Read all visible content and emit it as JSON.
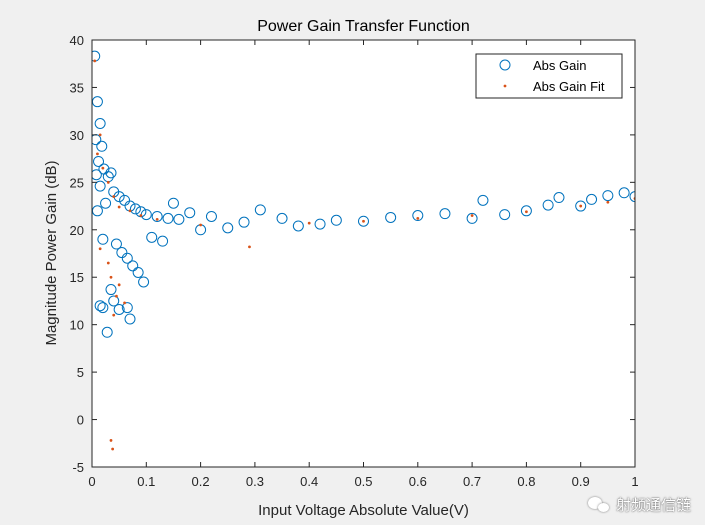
{
  "chart_data": {
    "type": "scatter",
    "title": "Power Gain Transfer Function",
    "xlabel": "Input Voltage Absolute Value(V)",
    "ylabel": "Magnitude Power Gain (dB)",
    "xlim": [
      0,
      1
    ],
    "ylim": [
      -5,
      40
    ],
    "xticks": [
      "0",
      "0.1",
      "0.2",
      "0.3",
      "0.4",
      "0.5",
      "0.6",
      "0.7",
      "0.8",
      "0.9",
      "1"
    ],
    "yticks": [
      "-5",
      "0",
      "5",
      "10",
      "15",
      "20",
      "25",
      "30",
      "35",
      "40"
    ],
    "grid": false,
    "legend": {
      "position": "top-right"
    },
    "series": [
      {
        "name": "Abs Gain",
        "marker": "open-circle",
        "color": "#0072bd",
        "points": [
          [
            0.005,
            38.3
          ],
          [
            0.01,
            33.5
          ],
          [
            0.015,
            31.2
          ],
          [
            0.007,
            29.5
          ],
          [
            0.018,
            28.8
          ],
          [
            0.012,
            27.2
          ],
          [
            0.022,
            26.4
          ],
          [
            0.008,
            25.8
          ],
          [
            0.03,
            25.6
          ],
          [
            0.035,
            26.0
          ],
          [
            0.015,
            24.6
          ],
          [
            0.04,
            24.0
          ],
          [
            0.05,
            23.5
          ],
          [
            0.06,
            23.1
          ],
          [
            0.025,
            22.8
          ],
          [
            0.07,
            22.5
          ],
          [
            0.01,
            22.0
          ],
          [
            0.08,
            22.2
          ],
          [
            0.09,
            21.9
          ],
          [
            0.1,
            21.6
          ],
          [
            0.12,
            21.4
          ],
          [
            0.14,
            21.2
          ],
          [
            0.16,
            21.1
          ],
          [
            0.02,
            19.0
          ],
          [
            0.045,
            18.5
          ],
          [
            0.055,
            17.6
          ],
          [
            0.065,
            17.0
          ],
          [
            0.075,
            16.2
          ],
          [
            0.085,
            15.5
          ],
          [
            0.095,
            14.5
          ],
          [
            0.035,
            13.7
          ],
          [
            0.04,
            12.5
          ],
          [
            0.015,
            12.0
          ],
          [
            0.02,
            11.8
          ],
          [
            0.05,
            11.6
          ],
          [
            0.065,
            11.8
          ],
          [
            0.07,
            10.6
          ],
          [
            0.028,
            9.2
          ],
          [
            0.11,
            19.2
          ],
          [
            0.13,
            18.8
          ],
          [
            0.15,
            22.8
          ],
          [
            0.18,
            21.8
          ],
          [
            0.2,
            20.0
          ],
          [
            0.22,
            21.4
          ],
          [
            0.25,
            20.2
          ],
          [
            0.28,
            20.8
          ],
          [
            0.31,
            22.1
          ],
          [
            0.35,
            21.2
          ],
          [
            0.38,
            20.4
          ],
          [
            0.42,
            20.6
          ],
          [
            0.45,
            21.0
          ],
          [
            0.5,
            20.9
          ],
          [
            0.55,
            21.3
          ],
          [
            0.6,
            21.5
          ],
          [
            0.65,
            21.7
          ],
          [
            0.7,
            21.2
          ],
          [
            0.72,
            23.1
          ],
          [
            0.76,
            21.6
          ],
          [
            0.8,
            22.0
          ],
          [
            0.84,
            22.6
          ],
          [
            0.86,
            23.4
          ],
          [
            0.9,
            22.5
          ],
          [
            0.92,
            23.2
          ],
          [
            0.95,
            23.6
          ],
          [
            0.98,
            23.9
          ],
          [
            1.0,
            23.5
          ]
        ]
      },
      {
        "name": "Abs Gain Fit",
        "marker": "dot",
        "color": "#d95319",
        "points": [
          [
            0.005,
            37.8
          ],
          [
            0.015,
            30.0
          ],
          [
            0.01,
            28.0
          ],
          [
            0.02,
            26.5
          ],
          [
            0.03,
            25.0
          ],
          [
            0.04,
            23.5
          ],
          [
            0.05,
            22.4
          ],
          [
            0.07,
            22.0
          ],
          [
            0.09,
            21.5
          ],
          [
            0.12,
            21.1
          ],
          [
            0.015,
            18.0
          ],
          [
            0.03,
            16.5
          ],
          [
            0.035,
            15.0
          ],
          [
            0.05,
            14.2
          ],
          [
            0.045,
            13.0
          ],
          [
            0.04,
            11.0
          ],
          [
            0.06,
            12.3
          ],
          [
            0.035,
            -2.2
          ],
          [
            0.038,
            -3.1
          ],
          [
            0.2,
            20.5
          ],
          [
            0.29,
            18.2
          ],
          [
            0.4,
            20.7
          ],
          [
            0.5,
            20.9
          ],
          [
            0.6,
            21.2
          ],
          [
            0.7,
            21.5
          ],
          [
            0.8,
            21.9
          ],
          [
            0.9,
            22.5
          ],
          [
            0.95,
            22.9
          ],
          [
            1.0,
            23.3
          ]
        ]
      }
    ]
  },
  "watermark": {
    "text": "射频通信链"
  }
}
